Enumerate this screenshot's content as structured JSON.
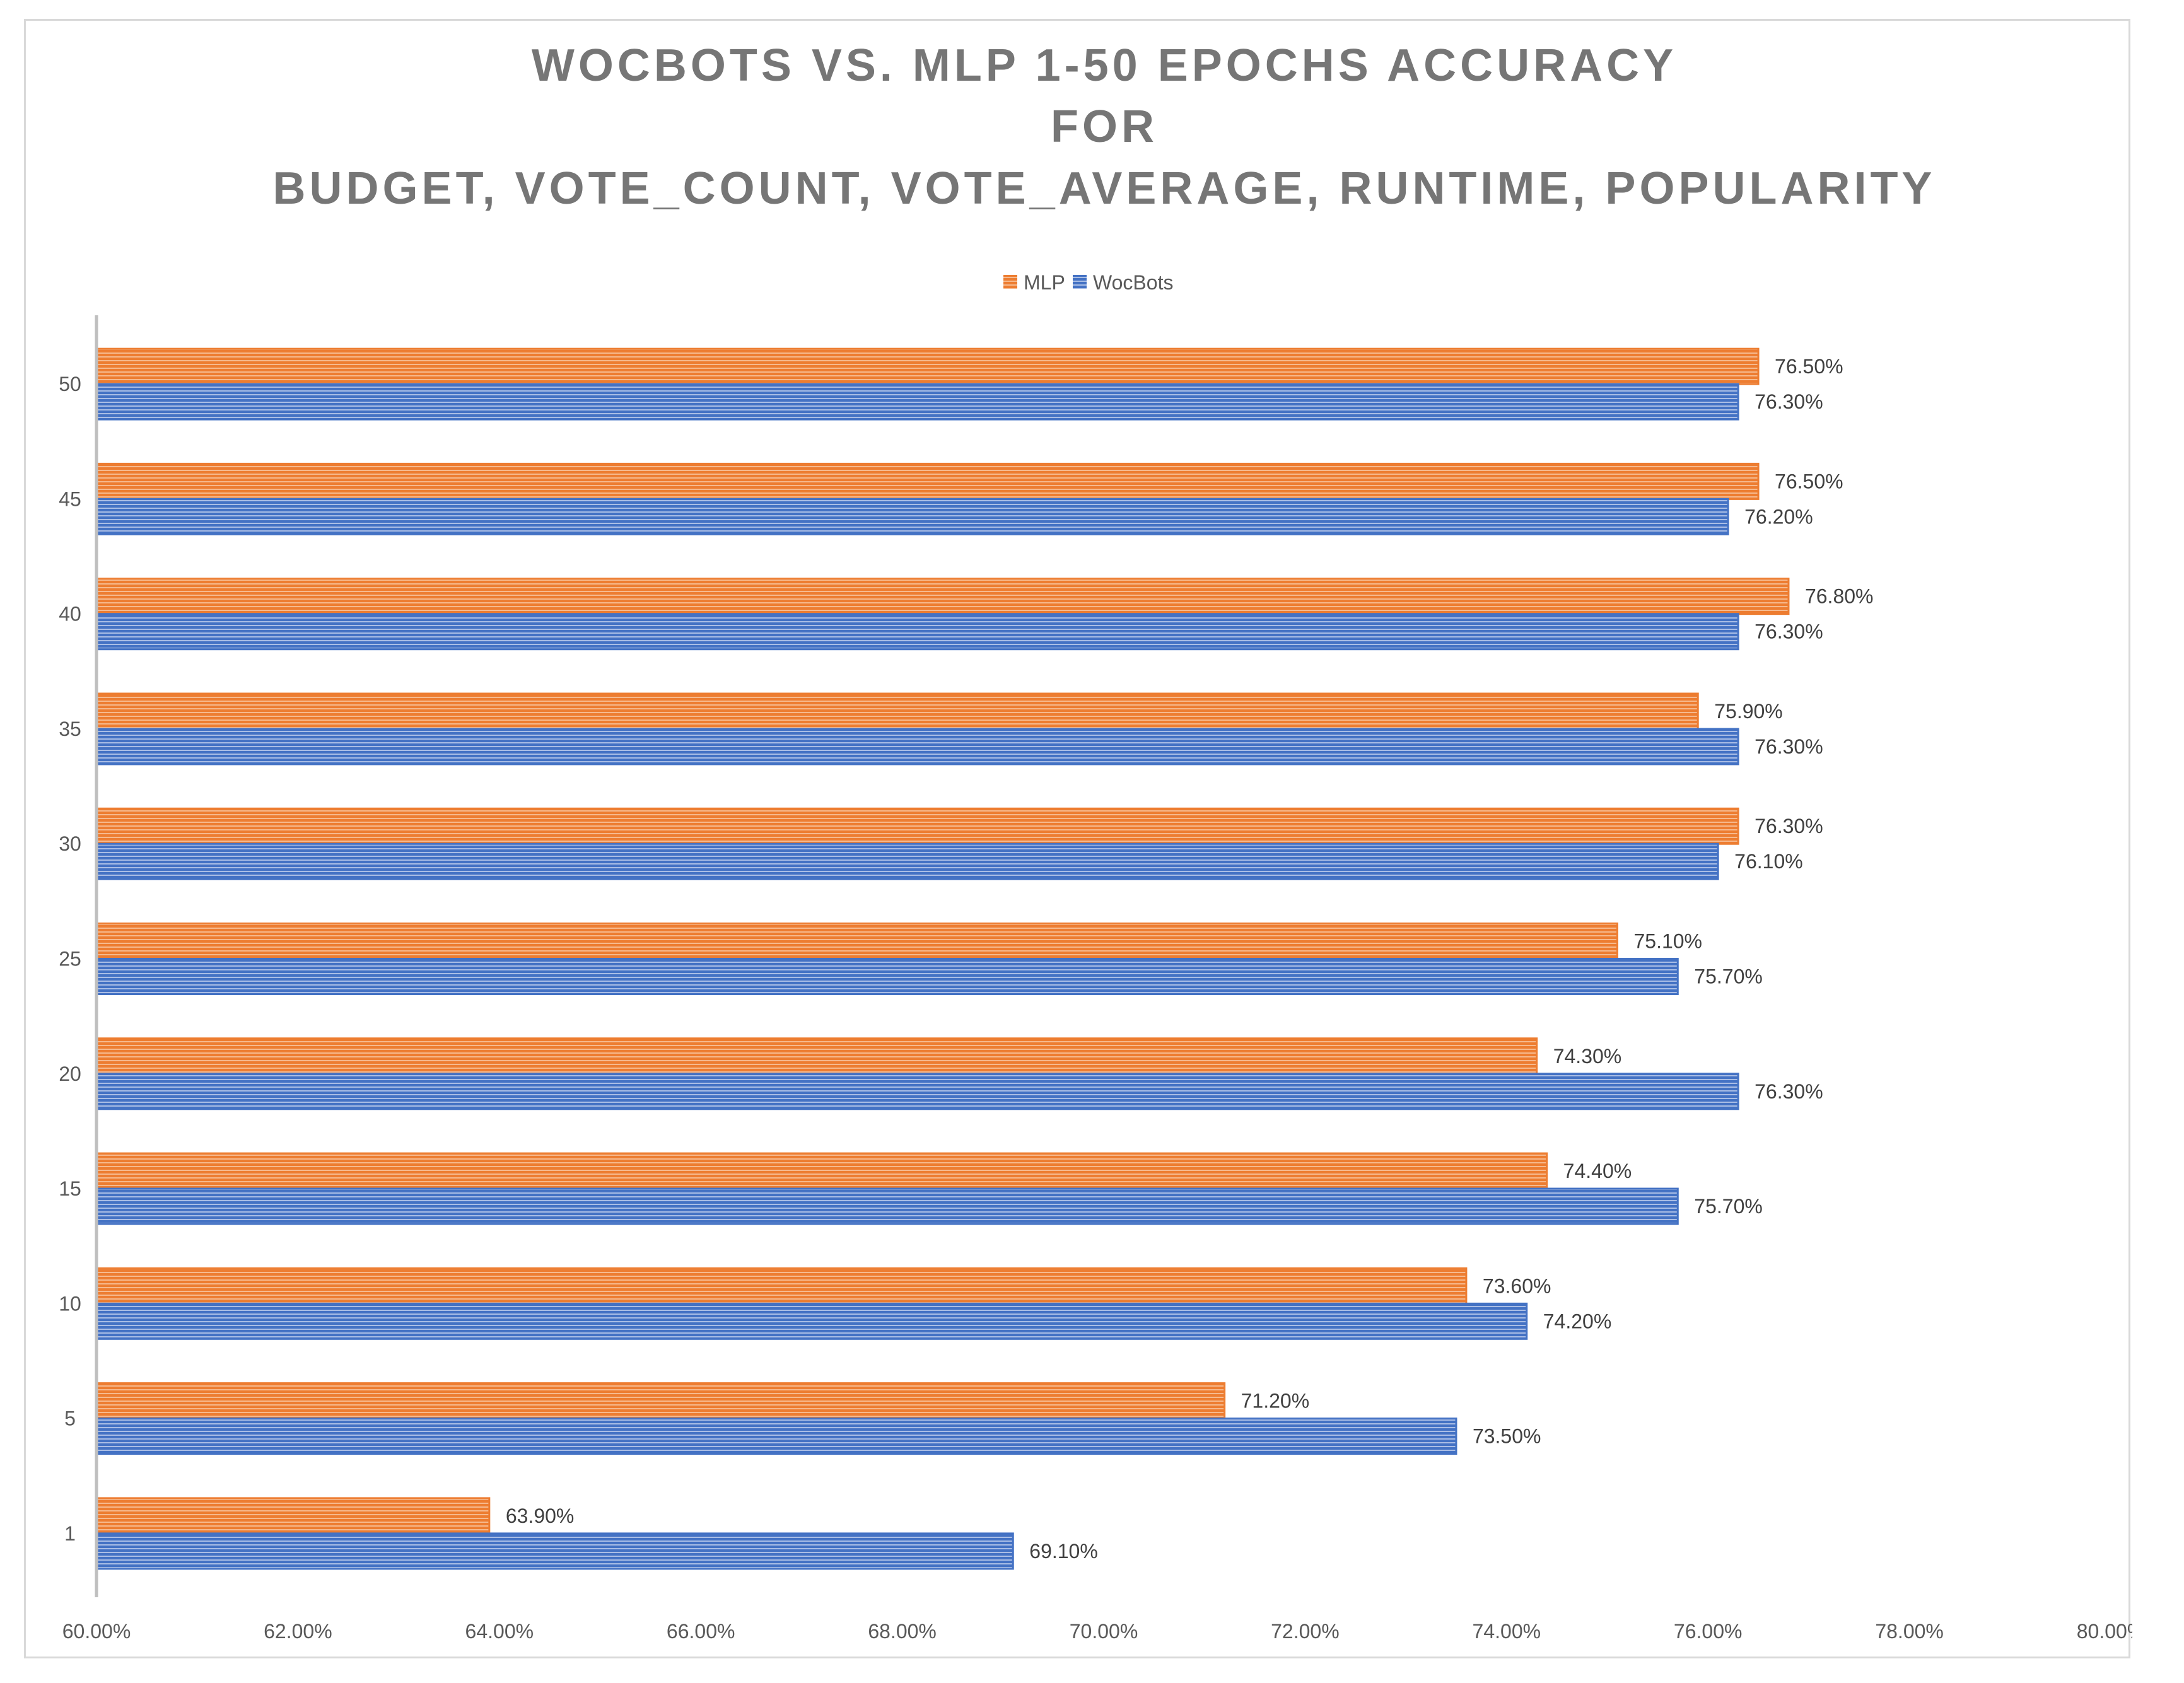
{
  "chart_data": {
    "type": "bar",
    "orientation": "horizontal",
    "title_lines": [
      "WOCBOTS VS. MLP 1-50 EPOCHS ACCURACY",
      "FOR",
      "BUDGET, VOTE_COUNT, VOTE_AVERAGE, RUNTIME, POPULARITY"
    ],
    "categories": [
      "1",
      "5",
      "10",
      "15",
      "20",
      "25",
      "30",
      "35",
      "40",
      "45",
      "50"
    ],
    "series": [
      {
        "name": "MLP",
        "color": "#ed7d31",
        "values": [
          63.9,
          71.2,
          73.6,
          74.4,
          74.3,
          75.1,
          76.3,
          75.9,
          76.8,
          76.5,
          76.5
        ],
        "labels": [
          "63.90%",
          "71.20%",
          "73.60%",
          "74.40%",
          "74.30%",
          "75.10%",
          "76.30%",
          "75.90%",
          "76.80%",
          "76.50%",
          "76.50%"
        ]
      },
      {
        "name": "WocBots",
        "color": "#4472c4",
        "values": [
          69.1,
          73.5,
          74.2,
          75.7,
          76.3,
          75.7,
          76.1,
          76.3,
          76.3,
          76.2,
          76.3
        ],
        "labels": [
          "69.10%",
          "73.50%",
          "74.20%",
          "75.70%",
          "76.30%",
          "75.70%",
          "76.10%",
          "76.30%",
          "76.30%",
          "76.20%",
          "76.30%"
        ]
      }
    ],
    "xlim": [
      60,
      80
    ],
    "xticks": [
      60,
      62,
      64,
      66,
      68,
      70,
      72,
      74,
      76,
      78,
      80
    ],
    "xtick_labels": [
      "60.00%",
      "62.00%",
      "64.00%",
      "66.00%",
      "68.00%",
      "70.00%",
      "72.00%",
      "74.00%",
      "76.00%",
      "78.00%",
      "80.00%"
    ],
    "xlabel": "",
    "ylabel": "",
    "grid": false,
    "legend": [
      "MLP",
      "WocBots"
    ],
    "legend_position": "top-center"
  }
}
